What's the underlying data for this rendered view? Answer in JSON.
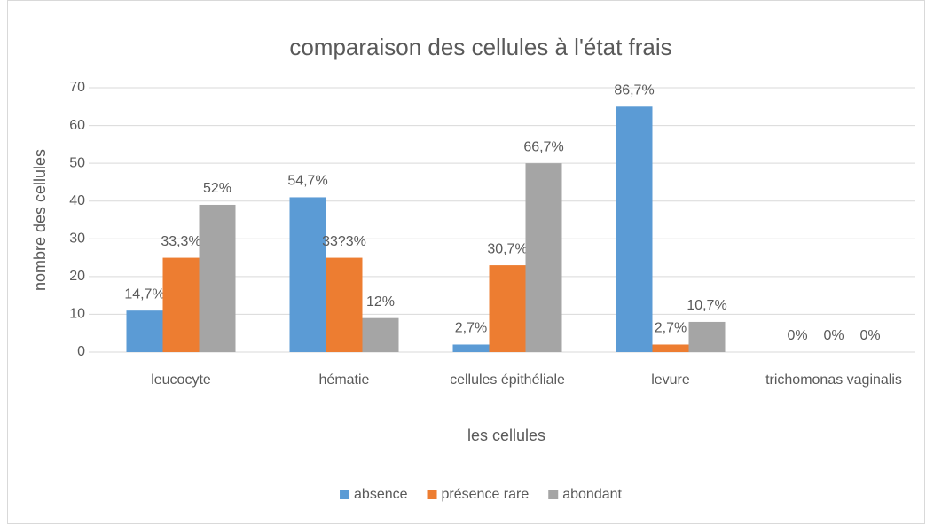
{
  "chart_data": {
    "type": "bar",
    "title": "comparaison des cellules à l'état frais",
    "x_label": "les cellules",
    "y_label": "nombre des cellules",
    "categories": [
      "leucocyte",
      "hématie",
      "cellules épithéliale",
      "levure",
      "trichomonas vaginalis"
    ],
    "series": [
      {
        "name": "absence",
        "color": "#5b9bd5",
        "values": [
          11,
          41,
          2,
          65,
          0
        ],
        "value_labels": [
          "14,7%",
          "54,7%",
          "2,7%",
          "86,7%",
          "0%"
        ]
      },
      {
        "name": "présence rare",
        "color": "#ed7d31",
        "values": [
          25,
          25,
          23,
          2,
          0
        ],
        "value_labels": [
          "33,3%",
          "33?3%",
          "30,7%",
          "2,7%",
          "0%"
        ]
      },
      {
        "name": "abondant",
        "color": "#a5a5a5",
        "values": [
          39,
          9,
          50,
          8,
          0
        ],
        "value_labels": [
          "52%",
          "12%",
          "66,7%",
          "10,7%",
          "0%"
        ]
      }
    ],
    "ylim": [
      0,
      70
    ],
    "yticks": [
      0,
      10,
      20,
      30,
      40,
      50,
      60,
      70
    ],
    "grid": true,
    "legend": "bottom"
  }
}
